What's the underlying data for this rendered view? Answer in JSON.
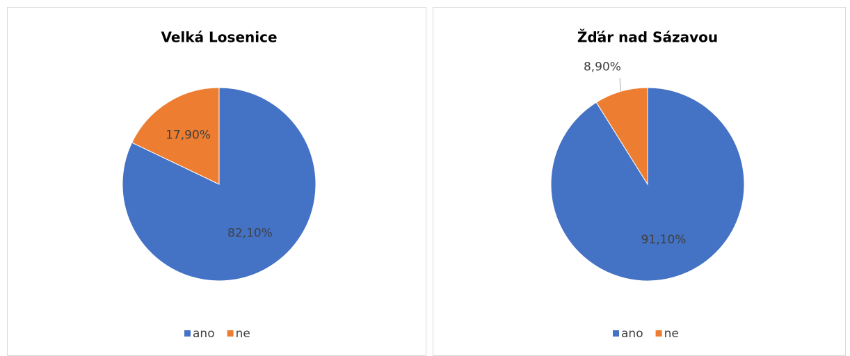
{
  "chart_data": [
    {
      "type": "pie",
      "title": "Velká Losenice",
      "categories": [
        "ano",
        "ne"
      ],
      "values": [
        82.1,
        17.9
      ],
      "value_labels": [
        "82,10%",
        "17,90%"
      ],
      "colors": [
        "#4472c4",
        "#ed7d31"
      ],
      "legend": "bottom"
    },
    {
      "type": "pie",
      "title": "Žďár nad Sázavou",
      "categories": [
        "ano",
        "ne"
      ],
      "values": [
        91.1,
        8.9
      ],
      "value_labels": [
        "91,10%",
        "8,90%"
      ],
      "colors": [
        "#4472c4",
        "#ed7d31"
      ],
      "legend": "bottom"
    }
  ]
}
